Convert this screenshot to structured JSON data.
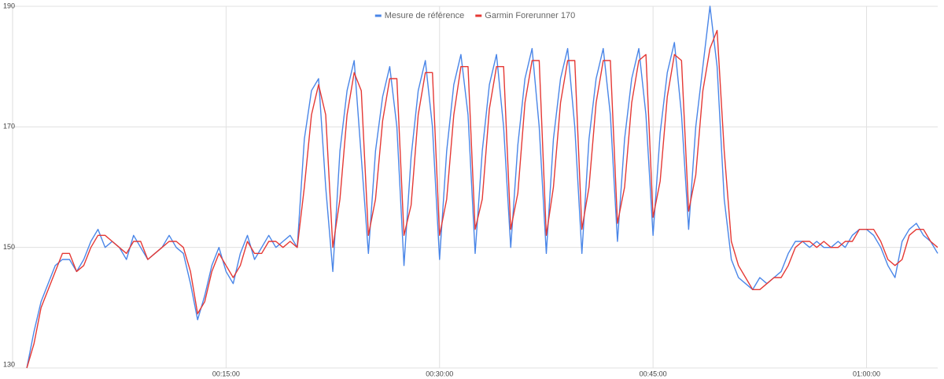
{
  "chart_data": {
    "type": "line",
    "x": [
      1,
      1.5,
      2,
      2.5,
      3,
      3.5,
      4,
      4.5,
      5,
      5.5,
      6,
      6.5,
      7,
      7.5,
      8,
      8.5,
      9,
      9.5,
      10,
      10.5,
      11,
      11.5,
      12,
      12.5,
      13,
      13.5,
      14,
      14.5,
      15,
      15.5,
      16,
      16.5,
      17,
      17.5,
      18,
      18.5,
      19,
      19.5,
      20,
      20.5,
      21,
      21.5,
      22,
      22.5,
      23,
      23.5,
      24,
      24.5,
      25,
      25.5,
      26,
      26.5,
      27,
      27.5,
      28,
      28.5,
      29,
      29.5,
      30,
      30.5,
      31,
      31.5,
      32,
      32.5,
      33,
      33.5,
      34,
      34.5,
      35,
      35.5,
      36,
      36.5,
      37,
      37.5,
      38,
      38.5,
      39,
      39.5,
      40,
      40.5,
      41,
      41.5,
      42,
      42.5,
      43,
      43.5,
      44,
      44.5,
      45,
      45.5,
      46,
      46.5,
      47,
      47.5,
      48,
      48.5,
      49,
      49.5,
      50,
      50.5,
      51,
      51.5,
      52,
      52.5,
      53,
      53.5,
      54,
      54.5,
      55,
      55.5,
      56,
      56.5,
      57,
      57.5,
      58,
      58.5,
      59,
      59.5,
      60,
      60.5,
      61,
      61.5,
      62,
      62.5,
      63,
      63.5,
      64,
      64.5,
      65
    ],
    "series": [
      {
        "name": "Mesure de référence",
        "color": "#4a86e8",
        "values": [
          130,
          136,
          141,
          144,
          147,
          148,
          148,
          146,
          148,
          151,
          153,
          150,
          151,
          150,
          148,
          152,
          150,
          148,
          149,
          150,
          152,
          150,
          149,
          144,
          138,
          142,
          147,
          150,
          146,
          144,
          149,
          152,
          148,
          150,
          152,
          150,
          151,
          152,
          150,
          168,
          176,
          178,
          160,
          146,
          166,
          176,
          181,
          165,
          149,
          166,
          175,
          180,
          170,
          147,
          165,
          176,
          181,
          170,
          148,
          166,
          177,
          182,
          172,
          149,
          166,
          177,
          182,
          170,
          150,
          167,
          178,
          183,
          170,
          149,
          168,
          178,
          183,
          170,
          149,
          168,
          178,
          183,
          172,
          151,
          168,
          178,
          183,
          172,
          152,
          169,
          179,
          184,
          172,
          153,
          170,
          180,
          190,
          180,
          158,
          148,
          145,
          144,
          143,
          145,
          144,
          145,
          146,
          149,
          151,
          151,
          150,
          151,
          150,
          150,
          151,
          150,
          152,
          153,
          153,
          152,
          150,
          147,
          145,
          151,
          153,
          154,
          152,
          151,
          149
        ]
      },
      {
        "name": "Garmin Forerunner 170",
        "color": "#e53935",
        "values": [
          130,
          134,
          140,
          143,
          146,
          149,
          149,
          146,
          147,
          150,
          152,
          152,
          151,
          150,
          149,
          151,
          151,
          148,
          149,
          150,
          151,
          151,
          150,
          146,
          139,
          141,
          146,
          149,
          147,
          145,
          147,
          151,
          149,
          149,
          151,
          151,
          150,
          151,
          150,
          160,
          172,
          177,
          172,
          150,
          158,
          172,
          179,
          176,
          152,
          158,
          171,
          178,
          178,
          152,
          157,
          172,
          179,
          179,
          152,
          158,
          172,
          180,
          180,
          153,
          158,
          173,
          180,
          180,
          153,
          159,
          174,
          181,
          181,
          152,
          160,
          174,
          181,
          181,
          153,
          160,
          174,
          181,
          181,
          154,
          160,
          174,
          181,
          182,
          155,
          161,
          175,
          182,
          181,
          156,
          162,
          176,
          183,
          186,
          166,
          151,
          147,
          145,
          143,
          143,
          144,
          145,
          145,
          147,
          150,
          151,
          151,
          150,
          151,
          150,
          150,
          151,
          151,
          153,
          153,
          153,
          151,
          148,
          147,
          148,
          152,
          153,
          153,
          151,
          150
        ]
      }
    ],
    "xlim": [
      0,
      65
    ],
    "xticks": [
      {
        "value": 15,
        "label": "00:15:00"
      },
      {
        "value": 30,
        "label": "00:30:00"
      },
      {
        "value": 45,
        "label": "00:45:00"
      },
      {
        "value": 60,
        "label": "01:00:00"
      }
    ],
    "ylim": [
      130,
      190
    ],
    "yticks": [
      130,
      150,
      170,
      190
    ],
    "grid": true,
    "legend": "top"
  }
}
